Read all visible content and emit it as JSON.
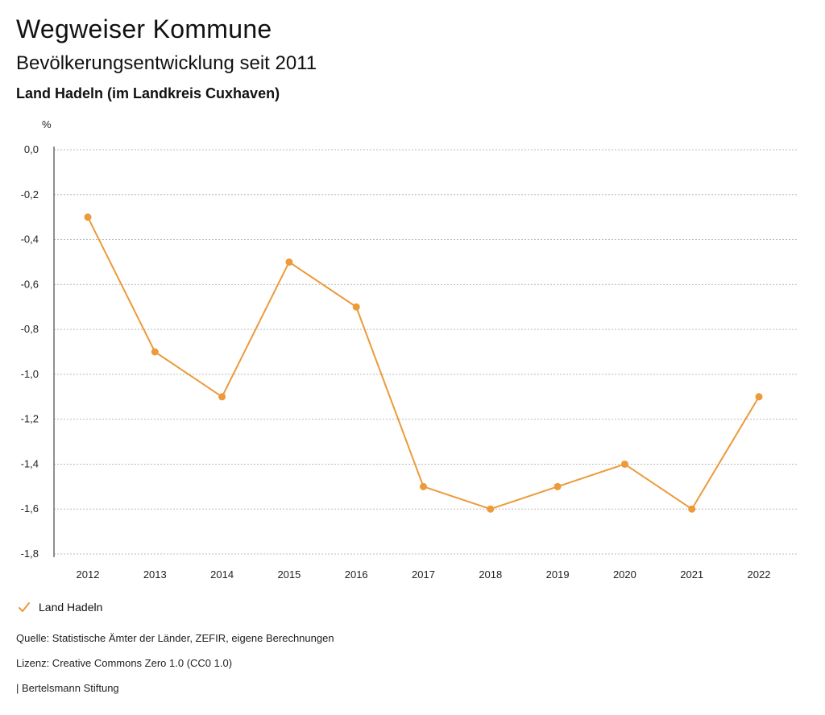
{
  "header": {
    "title": "Wegweiser Kommune",
    "subtitle": "Bevölkerungsentwicklung seit 2011",
    "region": "Land Hadeln (im Landkreis Cuxhaven)"
  },
  "chart_data": {
    "type": "line",
    "ylabel": "%",
    "x": [
      "2012",
      "2013",
      "2014",
      "2015",
      "2016",
      "2017",
      "2018",
      "2019",
      "2020",
      "2021",
      "2022"
    ],
    "ylim": [
      -1.8,
      0.0
    ],
    "yticks": [
      "0,0",
      "-0,2",
      "-0,4",
      "-0,6",
      "-0,8",
      "-1,0",
      "-1,2",
      "-1,4",
      "-1,6",
      "-1,8"
    ],
    "ytick_values": [
      0.0,
      -0.2,
      -0.4,
      -0.6,
      -0.8,
      -1.0,
      -1.2,
      -1.4,
      -1.6,
      -1.8
    ],
    "grid": true,
    "legend_position": "bottom-left",
    "series": [
      {
        "name": "Land Hadeln",
        "color": "#ec9a3a",
        "values": [
          -0.3,
          -0.9,
          -1.1,
          -0.5,
          -0.7,
          -1.5,
          -1.6,
          -1.5,
          -1.4,
          -1.6,
          -1.1
        ]
      }
    ]
  },
  "legend": {
    "label": "Land Hadeln",
    "icon": "check-icon"
  },
  "footer": {
    "source": "Quelle: Statistische Ämter der Länder, ZEFIR, eigene Berechnungen",
    "license": "Lizenz: Creative Commons Zero 1.0 (CC0 1.0)",
    "publisher": "| Bertelsmann Stiftung"
  },
  "colors": {
    "series": "#ec9a3a",
    "grid": "#bbbbbb",
    "axis": "#222222"
  }
}
